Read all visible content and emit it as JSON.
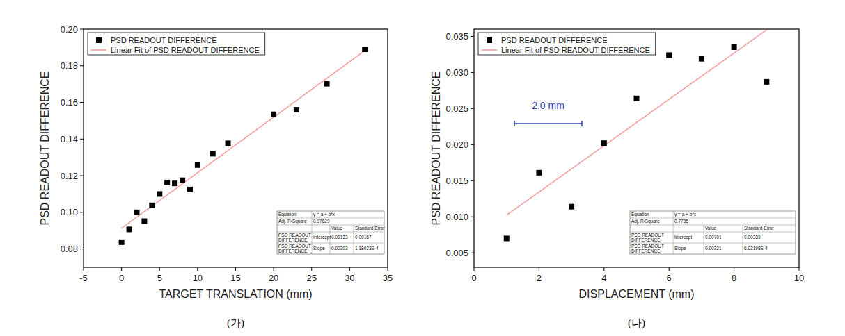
{
  "chart_data": [
    {
      "type": "scatter",
      "title": "(가)",
      "x_label": "TARGET TRANSLATION (mm)",
      "y_label": "PSD READOUT DIFFERENCE",
      "x": [
        0,
        1,
        2,
        3,
        4,
        5,
        6,
        7,
        8,
        9,
        10,
        12,
        14,
        20,
        23,
        27,
        32
      ],
      "series": [
        {
          "name": "PSD READOUT DIFFERENCE",
          "type": "scatter",
          "marker": "square",
          "color": "#000000",
          "values": [
            0.0837,
            0.0907,
            0.1,
            0.0952,
            0.1038,
            0.11,
            0.1163,
            0.1158,
            0.1175,
            0.1125,
            0.1258,
            0.132,
            0.1377,
            0.1535,
            0.156,
            0.1702,
            0.189
          ]
        },
        {
          "name": "Linear Fit of PSD READOUT DIFFERENCE",
          "type": "line",
          "line_style": "solid",
          "color": "#f2a0a0"
        }
      ],
      "fit": {
        "equation_label": "Equation",
        "equation": "y = a + b*x",
        "r2_label": "Adj. R-Square",
        "adj_r_square": 0.97629,
        "column_labels": [
          "Value",
          "Standard Error"
        ],
        "row_label": "PSD READOUT DIFFERENCE",
        "params": [
          {
            "name": "Intercept",
            "value": 0.09133,
            "error": 0.00167
          },
          {
            "name": "Slope",
            "value": 0.00303,
            "error": {
              "value": 0.000118023,
              "label": "1.18023E-4"
            }
          }
        ]
      },
      "xlim": [
        -5,
        35
      ],
      "xticks": [
        -5,
        0,
        5,
        10,
        15,
        20,
        25,
        30,
        35
      ],
      "ylim": [
        0.07,
        0.2
      ],
      "yticks": [
        0.08,
        {
          "value": 0.1,
          "label": "0.10"
        },
        0.12,
        0.14,
        0.16,
        0.18,
        {
          "value": 0.2,
          "label": "0.20"
        }
      ],
      "legend": "upper left",
      "grid": false
    },
    {
      "type": "scatter",
      "title": "(나)",
      "x_label": "DISPLACEMENT (mm)",
      "y_label": "PSD READOUT DIFFERENCE",
      "annotations": [
        {
          "text": "2.0 mm"
        }
      ],
      "x": [
        1,
        2,
        3,
        4,
        5,
        6,
        7,
        8,
        9
      ],
      "series": [
        {
          "name": "PSD READOUT DIFFERENCE",
          "type": "scatter",
          "marker": "square",
          "color": "#000000",
          "values": [
            0.007,
            0.0161,
            0.0114,
            0.0202,
            0.0264,
            0.0324,
            0.0319,
            0.0335,
            0.0287
          ]
        },
        {
          "name": "Linear Fit of PSD READOUT DIFFERENCE",
          "type": "line",
          "line_style": "solid",
          "color": "#f2a0a0"
        }
      ],
      "fit": {
        "equation_label": "Equation",
        "equation": "y = a + b*x",
        "r2_label": "Adj. R-Square",
        "adj_r_square": 0.7735,
        "column_labels": [
          "Value",
          "Standard Error"
        ],
        "row_label": "PSD READOUT DIFFERENCE",
        "params": [
          {
            "name": "Intercept",
            "value": 0.00701,
            "error": 0.00339
          },
          {
            "name": "Slope",
            "value": 0.00321,
            "error": {
              "value": 0.000603198,
              "label": "6.03198E-4"
            }
          }
        ]
      },
      "xlim": [
        0,
        10
      ],
      "xticks": [
        0,
        2,
        4,
        6,
        8,
        10
      ],
      "ylim": [
        0.003,
        0.036
      ],
      "yticks": [
        0.005,
        {
          "value": 0.01,
          "label": "0.010"
        },
        0.015,
        {
          "value": 0.02,
          "label": "0.020"
        },
        0.025,
        {
          "value": 0.03,
          "label": "0.030"
        },
        0.035
      ],
      "legend": "upper left",
      "grid": false
    }
  ]
}
